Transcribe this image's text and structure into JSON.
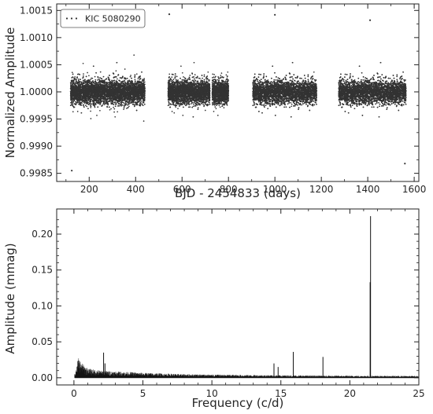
{
  "chart_data": [
    {
      "type": "scatter",
      "xlabel": "BJD - 2454833 (days)",
      "ylabel": "Normalized Amplitude",
      "xlim": [
        60,
        1620
      ],
      "ylim": [
        0.99835,
        1.00162
      ],
      "x_ticks": [
        "200",
        "400",
        "600",
        "800",
        "1000",
        "1200",
        "1400",
        "1600"
      ],
      "y_ticks": [
        "0.9985",
        "0.9990",
        "0.9995",
        "1.0000",
        "1.0005",
        "1.0010",
        "1.0015"
      ],
      "x_tick_values": [
        200,
        400,
        600,
        800,
        1000,
        1200,
        1400,
        1600
      ],
      "y_tick_values": [
        0.9985,
        0.999,
        0.9995,
        1.0,
        1.0005,
        1.001,
        1.0015
      ],
      "series": [
        {
          "name": "KIC 5080290",
          "color": "#333333",
          "marker": "point",
          "baseline": 1.0,
          "typical_scatter": 0.0002,
          "data_segments": [
            [
              120,
              440
            ],
            [
              540,
              720
            ],
            [
              730,
              800
            ],
            [
              905,
              1180
            ],
            [
              1275,
              1565
            ]
          ],
          "notable_points": [
            {
              "x": 125,
              "y": 0.99855
            },
            {
              "x": 545,
              "y": 1.00143
            },
            {
              "x": 1000,
              "y": 1.00142
            },
            {
              "x": 1410,
              "y": 1.00132
            },
            {
              "x": 1560,
              "y": 0.99868
            }
          ]
        }
      ],
      "legend": {
        "position": "top-left",
        "entries": [
          "KIC 5080290"
        ]
      },
      "grid": false
    },
    {
      "type": "line",
      "xlabel": "Frequency (c/d)",
      "ylabel": "Amplitude (mmag)",
      "xlim": [
        -1.25,
        25.0
      ],
      "ylim": [
        -0.01,
        0.235
      ],
      "x_ticks": [
        "0",
        "5",
        "10",
        "15",
        "20",
        "25"
      ],
      "y_ticks": [
        "0.00",
        "0.05",
        "0.10",
        "0.15",
        "0.20"
      ],
      "x_tick_values": [
        0,
        5,
        10,
        15,
        20,
        25
      ],
      "y_tick_values": [
        0.0,
        0.05,
        0.1,
        0.15,
        0.2
      ],
      "series": [
        {
          "name": "",
          "color": "#111111",
          "noise_envelope": [
            {
              "x": 0.1,
              "y": 0.005
            },
            {
              "x": 0.3,
              "y": 0.028
            },
            {
              "x": 0.6,
              "y": 0.02
            },
            {
              "x": 1.0,
              "y": 0.013
            },
            {
              "x": 2.0,
              "y": 0.01
            },
            {
              "x": 3.0,
              "y": 0.009
            },
            {
              "x": 5.0,
              "y": 0.007
            },
            {
              "x": 8.0,
              "y": 0.005
            },
            {
              "x": 12.0,
              "y": 0.004
            },
            {
              "x": 18.0,
              "y": 0.003
            },
            {
              "x": 25.0,
              "y": 0.0025
            }
          ],
          "peaks": [
            {
              "x": 2.15,
              "y": 0.035
            },
            {
              "x": 2.25,
              "y": 0.02
            },
            {
              "x": 14.5,
              "y": 0.02
            },
            {
              "x": 14.8,
              "y": 0.015
            },
            {
              "x": 15.9,
              "y": 0.036
            },
            {
              "x": 18.05,
              "y": 0.029
            },
            {
              "x": 21.5,
              "y": 0.225
            },
            {
              "x": 21.47,
              "y": 0.133
            }
          ]
        }
      ],
      "grid": false
    }
  ]
}
